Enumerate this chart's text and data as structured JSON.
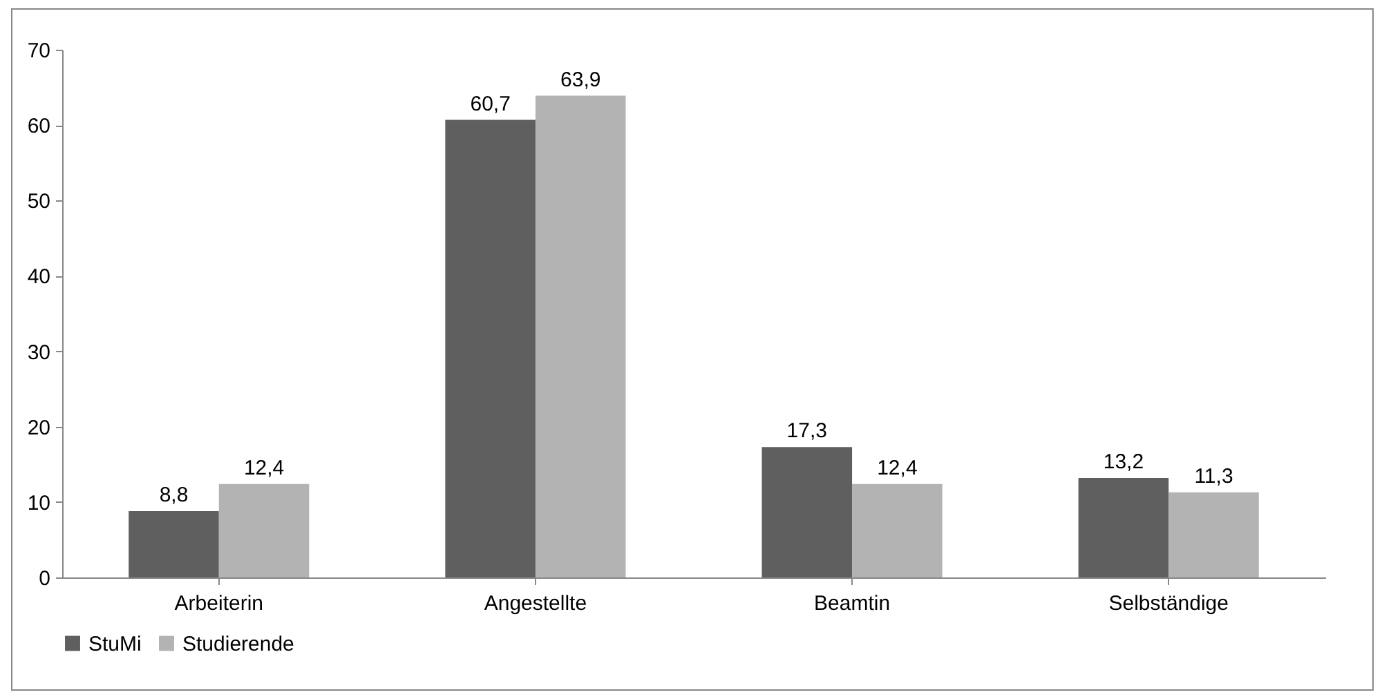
{
  "chart_data": {
    "type": "bar",
    "categories": [
      "Arbeiterin",
      "Angestellte",
      "Beamtin",
      "Selbständige"
    ],
    "series": [
      {
        "name": "StuMi",
        "color": "#5f5f5f",
        "values": [
          8.8,
          60.7,
          17.3,
          13.2
        ],
        "value_labels": [
          "8,8",
          "60,7",
          "17,3",
          "13,2"
        ]
      },
      {
        "name": "Studierende",
        "color": "#b3b3b3",
        "values": [
          12.4,
          63.9,
          12.4,
          11.3
        ],
        "value_labels": [
          "12,4",
          "63,9",
          "12,4",
          "11,3"
        ]
      }
    ],
    "ylim": [
      0,
      70
    ],
    "yticks": [
      0,
      10,
      20,
      30,
      40,
      50,
      60,
      70
    ],
    "grid": false,
    "legend": "bottom"
  }
}
